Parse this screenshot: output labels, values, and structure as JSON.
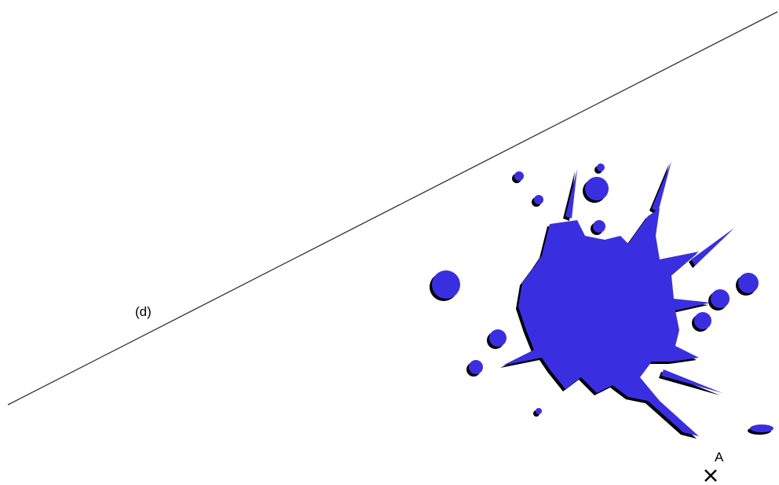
{
  "line_label": "(d)",
  "point_label": "A"
}
